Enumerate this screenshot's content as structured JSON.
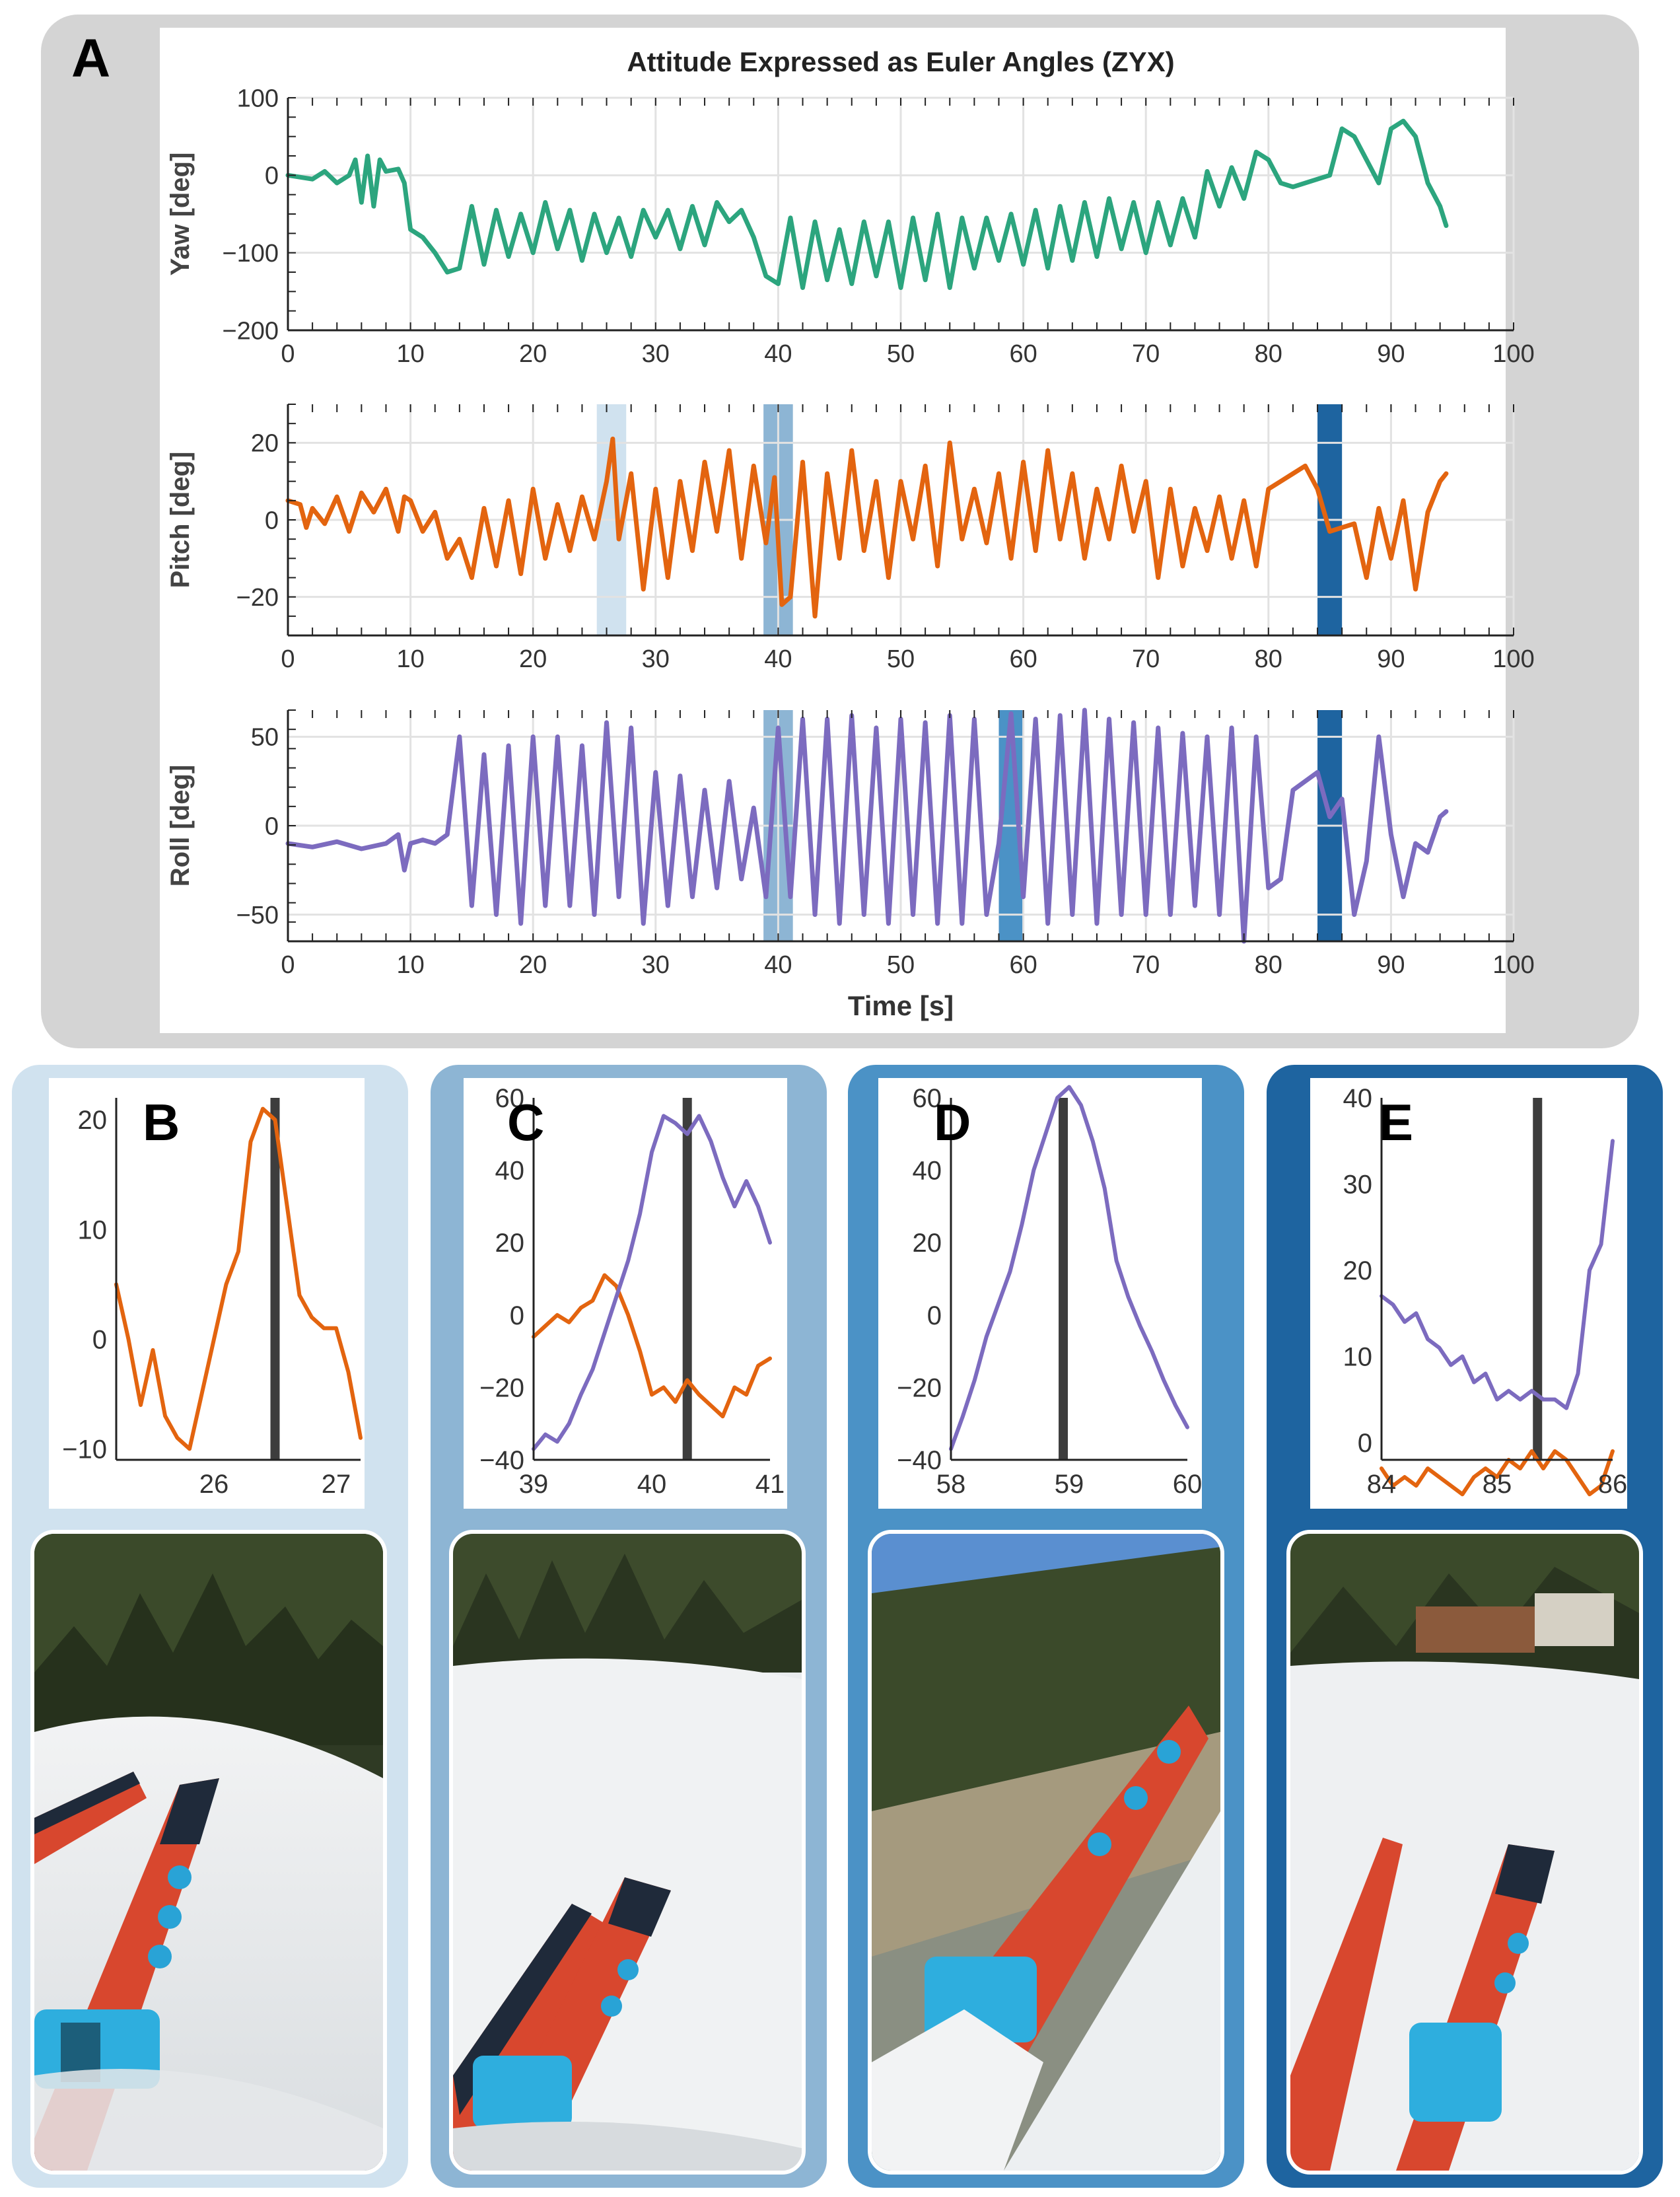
{
  "figure": {
    "panel_labels": [
      "A",
      "B",
      "C",
      "D",
      "E"
    ],
    "colors": {
      "yaw": "#2ca57e",
      "pitch": "#e3640f",
      "roll": "#7c6bbf",
      "marker": "#3d3d3d",
      "panel_a_bg": "#d4d4d4",
      "panel_b": "#d0e2ef",
      "panel_c": "#8db5d4",
      "panel_d": "#4b92c6",
      "panel_e": "#1e64a0"
    }
  },
  "chart_data": [
    {
      "id": "A-yaw",
      "type": "line",
      "title": "Attitude Expressed as Euler Angles (ZYX)",
      "ylabel": "Yaw [deg]",
      "xlabel": "",
      "xlim": [
        0,
        100
      ],
      "ylim": [
        -200,
        100
      ],
      "xticks": [
        0,
        10,
        20,
        30,
        40,
        50,
        60,
        70,
        80,
        90,
        100
      ],
      "yticks": [
        -200,
        -100,
        0,
        100
      ],
      "grid": true,
      "series": [
        {
          "x": [
            0,
            2,
            3,
            4,
            5,
            5.5,
            6,
            6.5,
            7,
            7.5,
            8,
            9,
            9.5,
            10,
            11,
            12,
            13,
            14,
            15,
            16,
            17,
            18,
            19,
            20,
            21,
            22,
            23,
            24,
            25,
            26,
            27,
            28,
            29,
            30,
            31,
            32,
            33,
            34,
            35,
            36,
            37,
            38,
            39,
            40,
            41,
            42,
            43,
            44,
            45,
            46,
            47,
            48,
            49,
            50,
            51,
            52,
            53,
            54,
            55,
            56,
            57,
            58,
            59,
            60,
            61,
            62,
            63,
            64,
            65,
            66,
            67,
            68,
            69,
            70,
            71,
            72,
            73,
            74,
            75,
            76,
            77,
            78,
            79,
            80,
            81,
            82,
            83,
            84,
            85,
            86,
            87,
            88,
            89,
            90,
            91,
            92,
            93,
            94,
            94.5
          ],
          "values": [
            0,
            -5,
            5,
            -10,
            0,
            20,
            -35,
            25,
            -40,
            20,
            5,
            8,
            -10,
            -70,
            -80,
            -100,
            -125,
            -120,
            -40,
            -115,
            -45,
            -105,
            -50,
            -100,
            -35,
            -95,
            -45,
            -110,
            -50,
            -100,
            -55,
            -105,
            -45,
            -80,
            -45,
            -95,
            -40,
            -90,
            -35,
            -60,
            -45,
            -80,
            -130,
            -140,
            -55,
            -145,
            -60,
            -135,
            -70,
            -140,
            -60,
            -130,
            -60,
            -145,
            -55,
            -135,
            -50,
            -145,
            -55,
            -120,
            -55,
            -110,
            -50,
            -115,
            -45,
            -120,
            -40,
            -110,
            -35,
            -105,
            -30,
            -95,
            -35,
            -100,
            -35,
            -90,
            -30,
            -80,
            5,
            -40,
            10,
            -30,
            30,
            20,
            -10,
            -15,
            -10,
            -5,
            0,
            60,
            50,
            20,
            -10,
            60,
            70,
            50,
            -10,
            -40,
            -65
          ]
        }
      ]
    },
    {
      "id": "A-pitch",
      "type": "line",
      "ylabel": "Pitch [deg]",
      "xlabel": "",
      "xlim": [
        0,
        100
      ],
      "ylim": [
        -30,
        30
      ],
      "xticks": [
        0,
        10,
        20,
        30,
        40,
        50,
        60,
        70,
        80,
        90,
        100
      ],
      "yticks": [
        -20,
        0,
        20
      ],
      "grid": true,
      "highlight_windows": [
        [
          25.2,
          27.6
        ],
        [
          38.8,
          41.2
        ],
        [
          84,
          86
        ]
      ],
      "series": [
        {
          "x": [
            0,
            1,
            1.5,
            2,
            3,
            4,
            5,
            6,
            7,
            8,
            9,
            9.5,
            10,
            11,
            12,
            13,
            14,
            15,
            16,
            17,
            18,
            19,
            20,
            21,
            22,
            23,
            24,
            25,
            26,
            26.5,
            27,
            28,
            29,
            30,
            31,
            32,
            33,
            34,
            35,
            36,
            37,
            38,
            39,
            39.7,
            40.3,
            41,
            42,
            43,
            44,
            45,
            46,
            47,
            48,
            49,
            50,
            51,
            52,
            53,
            54,
            55,
            56,
            57,
            58,
            59,
            60,
            61,
            62,
            63,
            64,
            65,
            66,
            67,
            68,
            69,
            70,
            71,
            72,
            73,
            74,
            75,
            76,
            77,
            78,
            79,
            80,
            81,
            82,
            83,
            84,
            85,
            86,
            87,
            88,
            89,
            90,
            91,
            92,
            93,
            94,
            94.5
          ],
          "values": [
            5,
            4,
            -2,
            3,
            -1,
            6,
            -3,
            7,
            2,
            8,
            -3,
            6,
            5,
            -3,
            2,
            -10,
            -5,
            -15,
            3,
            -12,
            5,
            -14,
            8,
            -10,
            4,
            -8,
            6,
            -5,
            10,
            21,
            -5,
            12,
            -18,
            8,
            -15,
            10,
            -8,
            15,
            -3,
            18,
            -10,
            14,
            -6,
            11,
            -22,
            -20,
            15,
            -25,
            12,
            -10,
            18,
            -8,
            10,
            -15,
            10,
            -5,
            14,
            -12,
            20,
            -5,
            8,
            -6,
            12,
            -10,
            15,
            -8,
            18,
            -5,
            12,
            -10,
            8,
            -5,
            14,
            -3,
            10,
            -15,
            8,
            -12,
            3,
            -8,
            6,
            -10,
            5,
            -12,
            8,
            10,
            12,
            14,
            8,
            -3,
            -2,
            -1,
            -15,
            3,
            -10,
            5,
            -18,
            2,
            10,
            12
          ]
        }
      ]
    },
    {
      "id": "A-roll",
      "type": "line",
      "ylabel": "Roll [deg]",
      "xlabel": "Time [s]",
      "xlim": [
        0,
        100
      ],
      "ylim": [
        -65,
        65
      ],
      "xticks": [
        0,
        10,
        20,
        30,
        40,
        50,
        60,
        70,
        80,
        90,
        100
      ],
      "yticks": [
        -50,
        0,
        50
      ],
      "grid": true,
      "highlight_windows": [
        [
          38.8,
          41.2
        ],
        [
          58,
          60
        ],
        [
          84,
          86
        ]
      ],
      "series": [
        {
          "x": [
            0,
            2,
            4,
            6,
            8,
            9,
            9.5,
            10,
            11,
            12,
            13,
            14,
            15,
            16,
            17,
            18,
            19,
            20,
            21,
            22,
            23,
            24,
            25,
            26,
            27,
            28,
            29,
            30,
            31,
            32,
            33,
            34,
            35,
            36,
            37,
            38,
            39,
            40,
            41,
            42,
            43,
            44,
            45,
            46,
            47,
            48,
            49,
            50,
            51,
            52,
            53,
            54,
            55,
            56,
            57,
            58,
            59,
            60,
            61,
            62,
            63,
            64,
            65,
            66,
            67,
            68,
            69,
            70,
            71,
            72,
            73,
            74,
            75,
            76,
            77,
            78,
            79,
            80,
            81,
            82,
            83,
            84,
            85,
            86,
            87,
            88,
            89,
            90,
            91,
            92,
            93,
            94,
            94.5
          ],
          "values": [
            -10,
            -12,
            -9,
            -13,
            -10,
            -5,
            -25,
            -10,
            -8,
            -10,
            -5,
            50,
            -45,
            40,
            -50,
            45,
            -55,
            50,
            -45,
            50,
            -45,
            45,
            -50,
            58,
            -40,
            55,
            -55,
            30,
            -45,
            28,
            -40,
            20,
            -35,
            25,
            -30,
            10,
            -40,
            55,
            -40,
            60,
            -50,
            60,
            -55,
            62,
            -50,
            55,
            -55,
            60,
            -50,
            58,
            -55,
            62,
            -55,
            60,
            -50,
            -10,
            63,
            -40,
            60,
            -55,
            62,
            -50,
            65,
            -55,
            60,
            -50,
            58,
            -50,
            55,
            -50,
            52,
            -45,
            50,
            -50,
            55,
            -65,
            50,
            -35,
            -30,
            20,
            25,
            30,
            5,
            15,
            -50,
            -20,
            50,
            -5,
            -40,
            -10,
            -15,
            5,
            8
          ]
        }
      ]
    },
    {
      "id": "B",
      "type": "line",
      "xlim": [
        25.2,
        27.2
      ],
      "ylim": [
        -11,
        22
      ],
      "xticks": [
        26,
        27
      ],
      "yticks": [
        -10,
        0,
        10,
        20
      ],
      "marker_x": 26.5,
      "series": [
        {
          "x": [
            25.2,
            25.3,
            25.4,
            25.5,
            25.6,
            25.7,
            25.8,
            25.9,
            26.0,
            26.1,
            26.2,
            26.3,
            26.4,
            26.5,
            26.6,
            26.7,
            26.8,
            26.9,
            27.0,
            27.1,
            27.2
          ],
          "values": [
            5,
            0,
            -6,
            -1,
            -7,
            -9,
            -10,
            -5,
            0,
            5,
            8,
            18,
            21,
            20,
            12,
            4,
            2,
            1,
            1,
            -3,
            -9
          ]
        }
      ]
    },
    {
      "id": "C",
      "type": "line",
      "xlim": [
        39,
        41
      ],
      "ylim": [
        -40,
        60
      ],
      "xticks": [
        39,
        40,
        41
      ],
      "yticks": [
        -40,
        -20,
        0,
        20,
        40,
        60
      ],
      "marker_x": 40.3,
      "series": [
        {
          "x": [
            39,
            39.1,
            39.2,
            39.3,
            39.4,
            39.5,
            39.6,
            39.7,
            39.8,
            39.9,
            40.0,
            40.1,
            40.2,
            40.3,
            40.4,
            40.5,
            40.6,
            40.7,
            40.8,
            40.9,
            41.0
          ],
          "values": [
            -6,
            -3,
            0,
            -2,
            2,
            4,
            11,
            8,
            0,
            -10,
            -22,
            -20,
            -24,
            -18,
            -22,
            -25,
            -28,
            -20,
            -22,
            -14,
            -12
          ]
        },
        {
          "x": [
            39,
            39.1,
            39.2,
            39.3,
            39.4,
            39.5,
            39.6,
            39.7,
            39.8,
            39.9,
            40.0,
            40.1,
            40.2,
            40.3,
            40.4,
            40.5,
            40.6,
            40.7,
            40.8,
            40.9,
            41.0
          ],
          "values": [
            -37,
            -33,
            -35,
            -30,
            -22,
            -15,
            -5,
            5,
            15,
            28,
            45,
            55,
            53,
            50,
            55,
            48,
            38,
            30,
            37,
            30,
            20
          ]
        }
      ]
    },
    {
      "id": "D",
      "type": "line",
      "xlim": [
        58,
        60
      ],
      "ylim": [
        -40,
        60
      ],
      "xticks": [
        58,
        59,
        60
      ],
      "yticks": [
        -40,
        -20,
        0,
        20,
        40,
        60
      ],
      "marker_x": 58.95,
      "series": [
        {
          "x": [
            58,
            58.1,
            58.2,
            58.3,
            58.4,
            58.5,
            58.6,
            58.7,
            58.8,
            58.9,
            59.0,
            59.1,
            59.2,
            59.3,
            59.4,
            59.5,
            59.6,
            59.7,
            59.8,
            59.9,
            60.0
          ],
          "values": [
            -37,
            -28,
            -18,
            -6,
            3,
            12,
            25,
            40,
            50,
            60,
            63,
            58,
            48,
            35,
            15,
            5,
            -3,
            -10,
            -18,
            -25,
            -31
          ]
        }
      ]
    },
    {
      "id": "E",
      "type": "line",
      "xlim": [
        84,
        86
      ],
      "ylim": [
        -2,
        40
      ],
      "xticks": [
        84,
        85,
        86
      ],
      "yticks": [
        0,
        10,
        20,
        30,
        40
      ],
      "marker_x": 85.35,
      "series": [
        {
          "x": [
            84,
            84.1,
            84.2,
            84.3,
            84.4,
            84.5,
            84.6,
            84.7,
            84.8,
            84.9,
            85.0,
            85.1,
            85.2,
            85.3,
            85.4,
            85.5,
            85.6,
            85.7,
            85.8,
            85.9,
            86.0
          ],
          "values": [
            -3,
            -5,
            -4,
            -5,
            -3,
            -4,
            -5,
            -6,
            -4,
            -3,
            -4,
            -2,
            -3,
            -1,
            -3,
            -1,
            -2,
            -4,
            -6,
            -5,
            -1
          ]
        },
        {
          "x": [
            84,
            84.1,
            84.2,
            84.3,
            84.4,
            84.5,
            84.6,
            84.7,
            84.8,
            84.9,
            85.0,
            85.1,
            85.2,
            85.3,
            85.4,
            85.5,
            85.6,
            85.7,
            85.8,
            85.9,
            86.0
          ],
          "values": [
            17,
            16,
            14,
            15,
            12,
            11,
            9,
            10,
            7,
            8,
            5,
            6,
            5,
            6,
            5,
            5,
            4,
            8,
            20,
            23,
            35
          ]
        }
      ]
    }
  ]
}
